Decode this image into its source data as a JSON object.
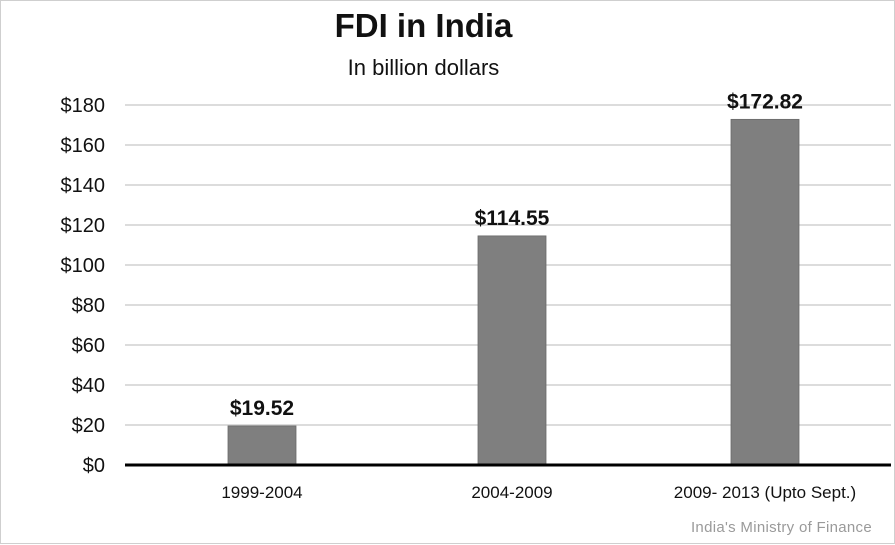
{
  "chart_data": {
    "type": "bar",
    "title": "FDI in India",
    "subtitle": "In billion dollars",
    "categories": [
      "1999-2004",
      "2004-2009",
      "2009- 2013 (Upto Sept.)"
    ],
    "values": [
      19.52,
      114.55,
      172.82
    ],
    "data_labels": [
      "$19.52",
      "$114.55",
      "$172.82"
    ],
    "yticks": [
      0,
      20,
      40,
      60,
      80,
      100,
      120,
      140,
      160,
      180
    ],
    "ytick_labels": [
      "$0",
      "$20",
      "$40",
      "$60",
      "$80",
      "$100",
      "$120",
      "$140",
      "$160",
      "$180"
    ],
    "ylim": [
      0,
      180
    ],
    "grid": true,
    "legend": "none",
    "bar_color": "#7f7f7f",
    "grid_color": "#c8c8c8",
    "axis_color": "#000000"
  },
  "source": "India's Ministry of Finance"
}
